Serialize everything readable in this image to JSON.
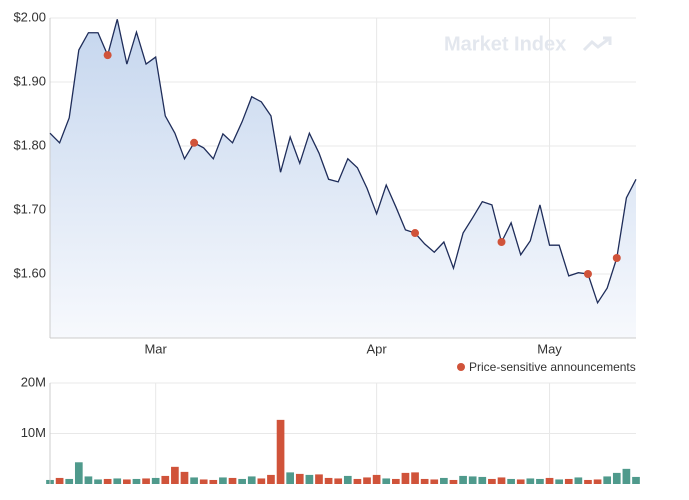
{
  "chart_data": [
    {
      "type": "line",
      "categories": [
        null,
        null,
        null,
        null,
        null,
        null,
        null,
        null,
        null,
        null,
        null,
        "Mar",
        null,
        null,
        null,
        null,
        null,
        null,
        null,
        null,
        null,
        null,
        null,
        null,
        null,
        null,
        null,
        null,
        null,
        null,
        null,
        null,
        null,
        null,
        "Apr",
        null,
        null,
        null,
        null,
        null,
        null,
        null,
        null,
        null,
        null,
        null,
        null,
        null,
        null,
        null,
        null,
        null,
        "May",
        null,
        null,
        null,
        null,
        null,
        null,
        null,
        null,
        null
      ],
      "values": [
        1.82,
        1.805,
        1.844,
        1.95,
        1.977,
        1.977,
        1.942,
        1.998,
        1.928,
        1.978,
        1.928,
        1.939,
        1.847,
        1.82,
        1.78,
        1.805,
        1.797,
        1.78,
        1.819,
        1.805,
        1.838,
        1.877,
        1.869,
        1.847,
        1.759,
        1.814,
        1.773,
        1.82,
        1.789,
        1.748,
        1.744,
        1.78,
        1.766,
        1.734,
        1.694,
        1.739,
        1.705,
        1.669,
        1.664,
        1.647,
        1.634,
        1.65,
        1.609,
        1.664,
        1.688,
        1.713,
        1.708,
        1.65,
        1.68,
        1.63,
        1.652,
        1.708,
        1.645,
        1.645,
        1.597,
        1.602,
        1.6,
        1.555,
        1.578,
        1.625,
        1.719,
        1.748
      ],
      "color": "#1f2d5a",
      "markers": {
        "name": "Price-sensitive announcements",
        "color": "#d0533a",
        "values": [
          null,
          null,
          null,
          null,
          null,
          null,
          1.942,
          null,
          null,
          null,
          null,
          null,
          null,
          null,
          null,
          1.805,
          null,
          null,
          null,
          null,
          null,
          null,
          null,
          null,
          null,
          null,
          null,
          null,
          null,
          null,
          null,
          null,
          null,
          null,
          null,
          null,
          null,
          null,
          1.664,
          null,
          null,
          null,
          null,
          null,
          null,
          null,
          null,
          1.65,
          null,
          null,
          null,
          null,
          null,
          null,
          null,
          null,
          1.6,
          null,
          null,
          1.625,
          null,
          null
        ]
      },
      "ylim": [
        1.5,
        2.0
      ],
      "yticks": [
        {
          "value": 1.6,
          "label": "$1.60"
        },
        {
          "value": 1.7,
          "label": "$1.70"
        },
        {
          "value": 1.8,
          "label": "$1.80"
        },
        {
          "value": 1.9,
          "label": "$1.90"
        },
        {
          "value": 2.0,
          "label": "$2.00"
        }
      ],
      "grid": true,
      "watermark": "Market Index"
    },
    {
      "type": "bar",
      "values": [
        800000,
        1200000,
        1000000,
        4300000,
        1500000,
        900000,
        1000000,
        1100000,
        900000,
        1000000,
        1100000,
        1200000,
        1600000,
        3400000,
        2400000,
        1300000,
        900000,
        800000,
        1300000,
        1200000,
        1000000,
        1500000,
        1100000,
        1800000,
        12700000,
        2300000,
        2000000,
        1800000,
        1900000,
        1200000,
        1100000,
        1600000,
        1000000,
        1300000,
        1800000,
        1100000,
        1000000,
        2200000,
        2300000,
        1000000,
        900000,
        1200000,
        800000,
        1600000,
        1500000,
        1400000,
        1000000,
        1300000,
        1000000,
        900000,
        1100000,
        1000000,
        1200000,
        900000,
        1000000,
        1300000,
        800000,
        900000,
        1500000,
        2200000,
        3000000,
        1400000
      ],
      "up_color": "#4f9a8c",
      "down_color": "#d0533a",
      "ylim": [
        0,
        20000000
      ],
      "yticks": [
        {
          "value": 10000000,
          "label": "10M"
        },
        {
          "value": 20000000,
          "label": "20M"
        }
      ],
      "grid": true
    }
  ]
}
